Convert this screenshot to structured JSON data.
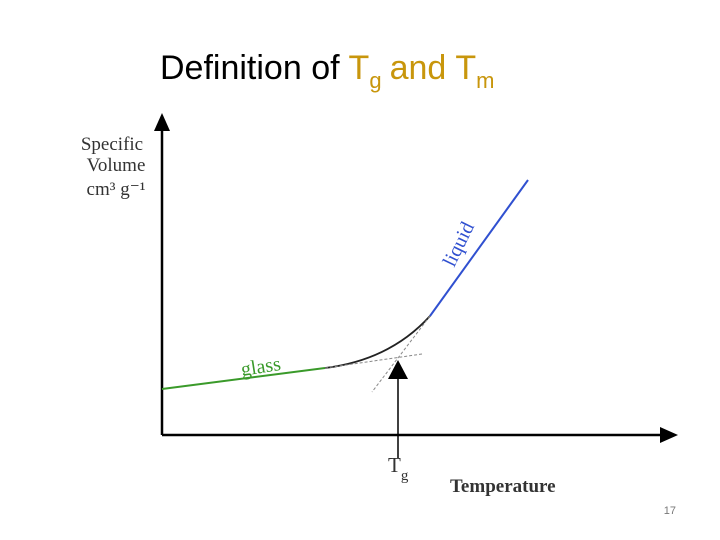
{
  "title": {
    "lead": "Definition of",
    "t1": "T",
    "sub1": "g",
    "and": "and",
    "t2": "T",
    "sub2": "m"
  },
  "diagram": {
    "y_label": [
      "Specific",
      "Volume",
      "cm³ g⁻¹"
    ],
    "x_label": "Temperature",
    "tg_label": {
      "main": "T",
      "sub": "g"
    },
    "glass_label": "glass",
    "liquid_label": "liquid"
  },
  "slide_number": "17"
}
